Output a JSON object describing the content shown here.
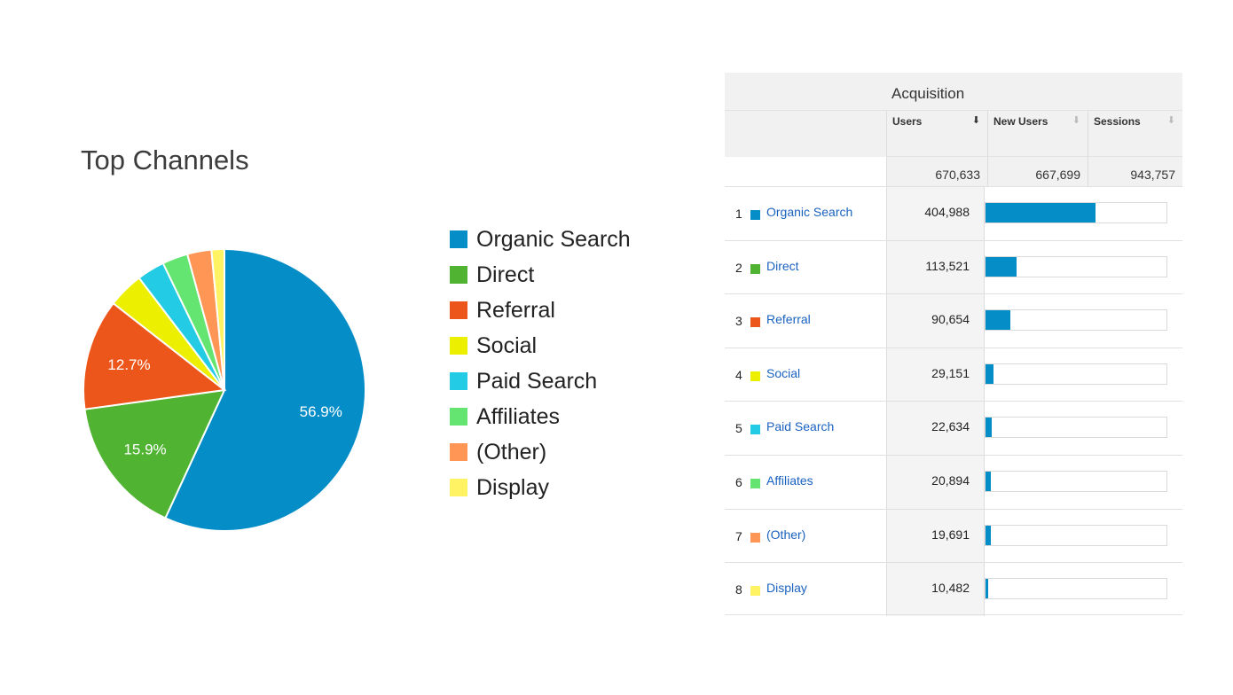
{
  "chart_data": [
    {
      "type": "pie",
      "title": "Top Channels",
      "categories": [
        "Organic Search",
        "Direct",
        "Referral",
        "Social",
        "Paid Search",
        "Affiliates",
        "(Other)",
        "Display"
      ],
      "values": [
        404988,
        113521,
        90654,
        29151,
        22634,
        20894,
        19691,
        10482
      ],
      "slice_labels": [
        "56.9%",
        "15.9%",
        "12.7%",
        "",
        "",
        "",
        "",
        ""
      ],
      "colors": [
        "#058dc7",
        "#50b432",
        "#ed561b",
        "#edef00",
        "#24cbe5",
        "#64e572",
        "#ff9655",
        "#fff263"
      ],
      "legend_position": "right"
    },
    {
      "type": "table",
      "group_header": "Acquisition",
      "columns": [
        "Users",
        "New Users",
        "Sessions"
      ],
      "sort_icons": [
        "⬇",
        "⬇",
        "⬇"
      ],
      "totals": [
        "670,633",
        "667,699",
        "943,757"
      ],
      "rows": [
        {
          "rank": "1",
          "channel": "Organic Search",
          "users": "404,988",
          "value": 404988
        },
        {
          "rank": "2",
          "channel": "Direct",
          "users": "113,521",
          "value": 113521
        },
        {
          "rank": "3",
          "channel": "Referral",
          "users": "90,654",
          "value": 90654
        },
        {
          "rank": "4",
          "channel": "Social",
          "users": "29,151",
          "value": 29151
        },
        {
          "rank": "5",
          "channel": "Paid Search",
          "users": "22,634",
          "value": 22634
        },
        {
          "rank": "6",
          "channel": "Affiliates",
          "users": "20,894",
          "value": 20894
        },
        {
          "rank": "7",
          "channel": "(Other)",
          "users": "19,691",
          "value": 19691
        },
        {
          "rank": "8",
          "channel": "Display",
          "users": "10,482",
          "value": 10482
        }
      ],
      "bar_color": "#058dc7"
    }
  ]
}
